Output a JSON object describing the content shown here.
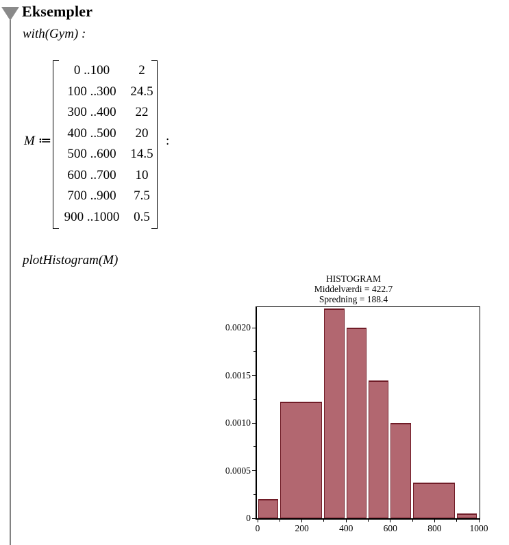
{
  "section": {
    "title": "Eksempler"
  },
  "inputs": {
    "with_line": "with(Gym) :",
    "plot_line": "plotHistogram(M)"
  },
  "matrix": {
    "lhs": "M",
    "assign_op": "≔",
    "terminator": ":",
    "rows": [
      [
        "0 ..100",
        "2"
      ],
      [
        "100 ..300",
        "24.5"
      ],
      [
        "300 ..400",
        "22"
      ],
      [
        "400 ..500",
        "20"
      ],
      [
        "500 ..600",
        "14.5"
      ],
      [
        "600 ..700",
        "10"
      ],
      [
        "700 ..900",
        "7.5"
      ],
      [
        "900 ..1000",
        "0.5"
      ]
    ]
  },
  "chart_data": {
    "type": "bar",
    "title": "HISTOGRAM",
    "subtitle_lines": [
      "Middelværdi = 422.7",
      "Spredning = 188.4"
    ],
    "stats": {
      "mean": 422.7,
      "std": 188.4
    },
    "xlabel": "",
    "ylabel": "",
    "xlim": [
      0,
      1000
    ],
    "ylim": [
      0,
      0.00222
    ],
    "grid": false,
    "x_major_ticks": [
      0,
      200,
      400,
      600,
      800,
      1000
    ],
    "x_minor_ticks": [
      100,
      300,
      500,
      700,
      900
    ],
    "y_major_ticks": [
      {
        "value": 0,
        "label": "0"
      },
      {
        "value": 0.0005,
        "label": "0.0005"
      },
      {
        "value": 0.001,
        "label": "0.0010"
      },
      {
        "value": 0.0015,
        "label": "0.0015"
      },
      {
        "value": 0.002,
        "label": "0.0020"
      }
    ],
    "y_minor_ticks": [
      0.00025,
      0.00075,
      0.00125,
      0.00175
    ],
    "bins": [
      {
        "range": [
          0,
          100
        ],
        "frequency_pct": 2,
        "density": 0.0002
      },
      {
        "range": [
          100,
          300
        ],
        "frequency_pct": 24.5,
        "density": 0.001225
      },
      {
        "range": [
          300,
          400
        ],
        "frequency_pct": 22,
        "density": 0.0022
      },
      {
        "range": [
          400,
          500
        ],
        "frequency_pct": 20,
        "density": 0.002
      },
      {
        "range": [
          500,
          600
        ],
        "frequency_pct": 14.5,
        "density": 0.00145
      },
      {
        "range": [
          600,
          700
        ],
        "frequency_pct": 10,
        "density": 0.001
      },
      {
        "range": [
          700,
          900
        ],
        "frequency_pct": 7.5,
        "density": 0.000375
      },
      {
        "range": [
          900,
          1000
        ],
        "frequency_pct": 0.5,
        "density": 5e-05
      }
    ],
    "colors": {
      "bar_fill": "#b26770",
      "bar_edge": "#701c27",
      "axis": "#000000"
    }
  },
  "ui": {
    "collapse_icon_color": "#8a8a8a"
  }
}
